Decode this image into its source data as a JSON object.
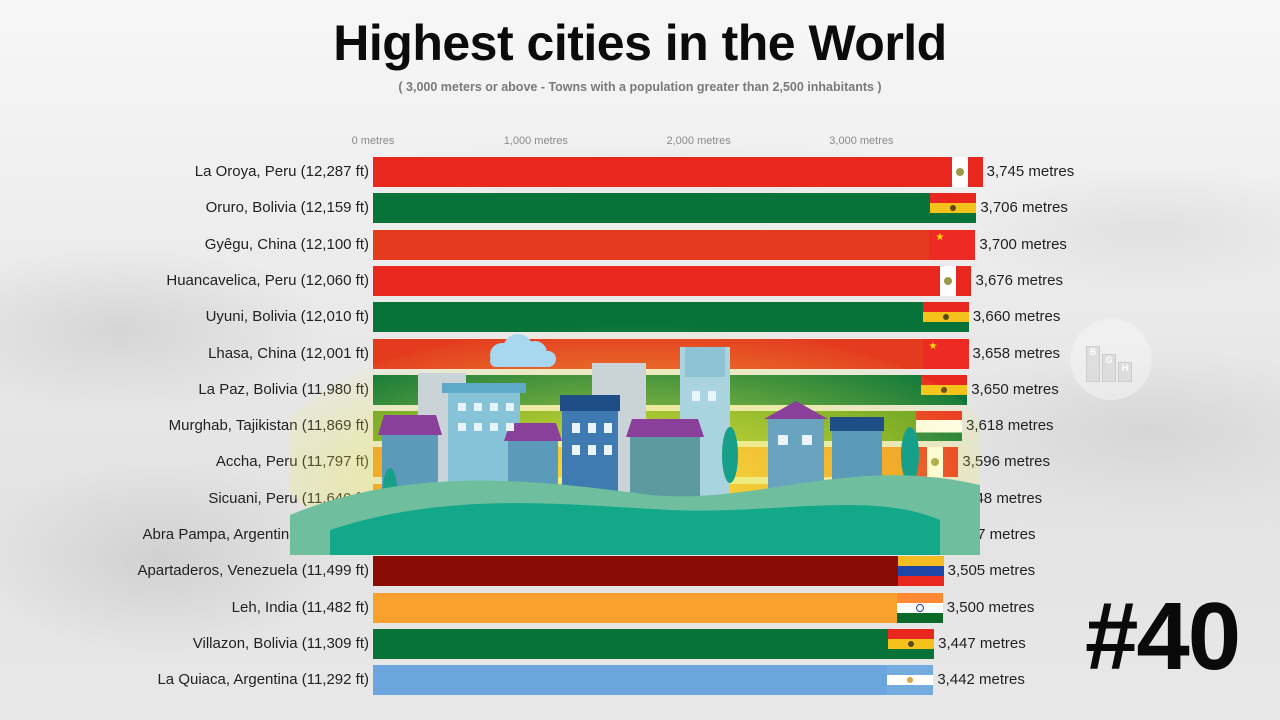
{
  "title": "Highest cities in the World",
  "subtitle": "( 3,000 meters or above - Towns with a population greater than 2,500 inhabitants )",
  "axis": {
    "ticks": [
      {
        "label": "0 metres",
        "value": 0
      },
      {
        "label": "1,000 metres",
        "value": 1000
      },
      {
        "label": "2,000 metres",
        "value": 2000
      },
      {
        "label": "3,000 metres",
        "value": 3000
      }
    ]
  },
  "rank_badge": "#40",
  "logo_letters": [
    "B",
    "G",
    "H"
  ],
  "rows": [
    {
      "label": "La Oroya, Peru (12,287 ft)",
      "value_label": "3,745 metres",
      "metres": 3745,
      "color": "#e8281e",
      "flag": "peru"
    },
    {
      "label": "Oruro, Bolivia (12,159 ft)",
      "value_label": "3,706 metres",
      "metres": 3706,
      "color": "#087339",
      "flag": "bolivia"
    },
    {
      "label": "Gyêgu, China (12,100 ft)",
      "value_label": "3,700 metres",
      "metres": 3700,
      "color": "#e43b1f",
      "flag": "china"
    },
    {
      "label": "Huancavelica, Peru (12,060 ft)",
      "value_label": "3,676 metres",
      "metres": 3676,
      "color": "#e8281e",
      "flag": "peru"
    },
    {
      "label": "Uyuni, Bolivia (12,010 ft)",
      "value_label": "3,660 metres",
      "metres": 3660,
      "color": "#087339",
      "flag": "bolivia"
    },
    {
      "label": "Lhasa, China (12,001 ft)",
      "value_label": "3,658 metres",
      "metres": 3658,
      "color": "#e43b1f",
      "flag": "china"
    },
    {
      "label": "La Paz, Bolivia (11,980 ft)",
      "value_label": "3,650 metres",
      "metres": 3650,
      "color": "#087339",
      "flag": "bolivia"
    },
    {
      "label": "Murghab, Tajikistan (11,869 ft)",
      "value_label": "3,618 metres",
      "metres": 3618,
      "color": "#5b9a1e",
      "flag": "tajikistan"
    },
    {
      "label": "Accha, Peru (11,797 ft)",
      "value_label": "3,596 metres",
      "metres": 3596,
      "color": "#f08a1c",
      "flag": "peru"
    },
    {
      "label": "Sicuani, Peru (11,640 ft)",
      "value_label": "3,548 metres",
      "metres": 3548,
      "color": "#f08a1c",
      "flag": "peru"
    },
    {
      "label": "Abra Pampa, Argentina (11,505 ft)",
      "value_label": "3,507 metres",
      "metres": 3507,
      "color": "#8cc0c8",
      "flag": "argentina"
    },
    {
      "label": "Apartaderos, Venezuela (11,499 ft)",
      "value_label": "3,505 metres",
      "metres": 3505,
      "color": "#8a0c04",
      "flag": "venezuela"
    },
    {
      "label": "Leh, India (11,482 ft)",
      "value_label": "3,500 metres",
      "metres": 3500,
      "color": "#f8a12c",
      "flag": "india"
    },
    {
      "label": "Villazon, Bolivia (11,309 ft)",
      "value_label": "3,447 metres",
      "metres": 3447,
      "color": "#087339",
      "flag": "bolivia"
    },
    {
      "label": "La Quiaca, Argentina (11,292 ft)",
      "value_label": "3,442 metres",
      "metres": 3442,
      "color": "#6ca6df",
      "flag": "argentina"
    }
  ],
  "chart_data": {
    "type": "bar",
    "orientation": "horizontal",
    "title": "Highest cities in the World",
    "subtitle": "( 3,000 meters or above - Towns with a population greater than 2,500 inhabitants )",
    "xlabel": "metres",
    "ylabel": "",
    "xlim": [
      0,
      3800
    ],
    "x_ticks": [
      "0 metres",
      "1,000 metres",
      "2,000 metres",
      "3,000 metres"
    ],
    "grid": false,
    "legend": "none",
    "categories": [
      "La Oroya, Peru (12,287 ft)",
      "Oruro, Bolivia (12,159 ft)",
      "Gyêgu, China (12,100 ft)",
      "Huancavelica, Peru (12,060 ft)",
      "Uyuni, Bolivia (12,010 ft)",
      "Lhasa, China (12,001 ft)",
      "La Paz, Bolivia (11,980 ft)",
      "Murghab, Tajikistan (11,869 ft)",
      "Accha, Peru (11,797 ft)",
      "Sicuani, Peru (11,640 ft)",
      "Abra Pampa, Argentina (11,505 ft)",
      "Apartaderos, Venezuela (11,499 ft)",
      "Leh, India (11,482 ft)",
      "Villazon, Bolivia (11,309 ft)",
      "La Quiaca, Argentina (11,292 ft)"
    ],
    "values": [
      3745,
      3706,
      3700,
      3676,
      3660,
      3658,
      3650,
      3618,
      3596,
      3548,
      3507,
      3505,
      3500,
      3447,
      3442
    ],
    "values_ft": [
      12287,
      12159,
      12100,
      12060,
      12010,
      12001,
      11980,
      11869,
      11797,
      11640,
      11505,
      11499,
      11482,
      11309,
      11292
    ],
    "annotations": [
      "#40"
    ]
  }
}
